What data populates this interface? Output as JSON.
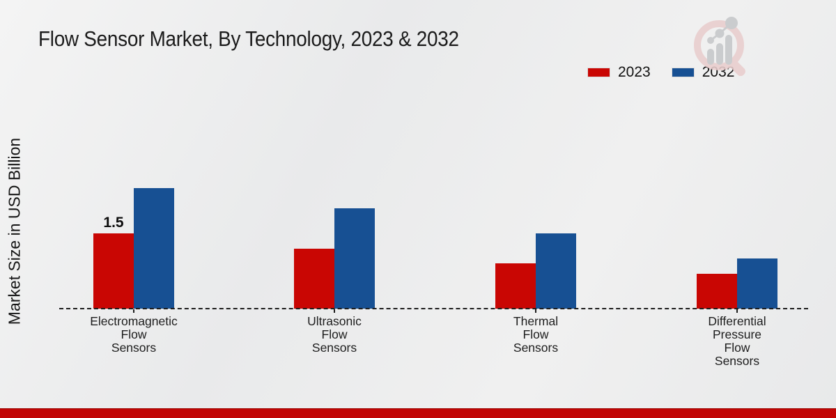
{
  "page": {
    "title": "Flow Sensor Market, By Technology, 2023 & 2032",
    "ylabel": "Market Size in USD Billion"
  },
  "legend": {
    "items": [
      {
        "label": "2023",
        "color": "#c90603"
      },
      {
        "label": "2032",
        "color": "#175093"
      }
    ]
  },
  "footer": {
    "bar_color": "#c10505"
  },
  "logo": {
    "name": "market-research-future-watermark"
  },
  "chart_data": {
    "type": "bar",
    "title": "Flow Sensor Market, By Technology, 2023 & 2032",
    "ylabel": "Market Size in USD Billion",
    "xlabel": "",
    "categories": [
      "Electromagnetic Flow Sensors",
      "Ultrasonic Flow Sensors",
      "Thermal Flow Sensors",
      "Differential Pressure Flow Sensors"
    ],
    "categories_lines": [
      [
        "Electromagnetic",
        "Flow",
        "Sensors"
      ],
      [
        "Ultrasonic",
        "Flow",
        "Sensors"
      ],
      [
        "Thermal",
        "Flow",
        "Sensors"
      ],
      [
        "Differential",
        "Pressure",
        "Flow",
        "Sensors"
      ]
    ],
    "series": [
      {
        "name": "2023",
        "color": "#c90603",
        "values": [
          1.5,
          1.2,
          0.9,
          0.7
        ]
      },
      {
        "name": "2032",
        "color": "#175093",
        "values": [
          2.4,
          2.0,
          1.5,
          1.0
        ]
      }
    ],
    "value_labels": [
      {
        "series_index": 0,
        "category_index": 0,
        "text": "1.5"
      }
    ],
    "ylim": [
      0,
      2.6
    ],
    "units": "USD Billion",
    "grid": false,
    "baseline_style": "dashed",
    "legend_position": "top-right"
  }
}
